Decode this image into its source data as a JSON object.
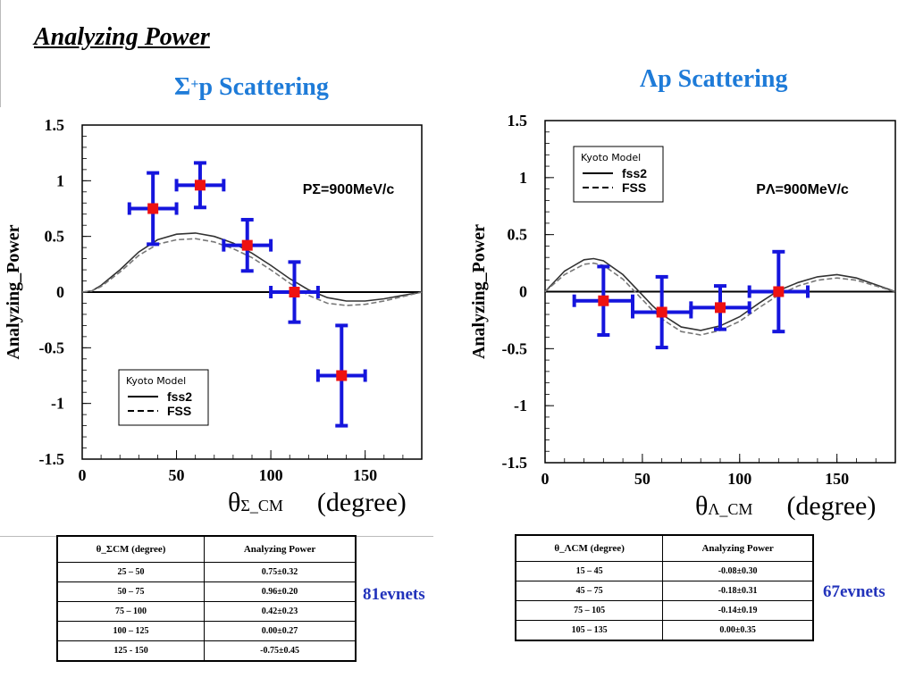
{
  "page": {
    "title": "Analyzing Power"
  },
  "left": {
    "subtitle_prefix": "Σ",
    "subtitle_sup": "+",
    "subtitle_suffix": "p Scattering",
    "events": "81evnets",
    "table": {
      "headers": [
        "θ_ΣCM (degree)",
        "Analyzing Power"
      ],
      "rows": [
        [
          "25 – 50",
          "0.75±0.32"
        ],
        [
          "50 – 75",
          "0.96±0.20"
        ],
        [
          "75 – 100",
          "0.42±0.23"
        ],
        [
          "100 – 125",
          "0.00±0.27"
        ],
        [
          "125 - 150",
          "-0.75±0.45"
        ]
      ]
    }
  },
  "right": {
    "subtitle": "Λp Scattering",
    "events": "67evnets",
    "table": {
      "headers": [
        "θ_ΛCM (degree)",
        "Analyzing Power"
      ],
      "rows": [
        [
          "15 – 45",
          "-0.08±0.30"
        ],
        [
          "45 – 75",
          "-0.18±0.31"
        ],
        [
          "75 – 105",
          "-0.14±0.19"
        ],
        [
          "105 – 135",
          "0.00±0.35"
        ]
      ]
    }
  },
  "chart_data": [
    {
      "type": "scatter",
      "ylabel": "Analyzing_Power",
      "xlabel_symbol": "θ",
      "xlabel_sub": "Σ_CM",
      "xlabel_unit": "(degree)",
      "annotation": "PΣ=900MeV/c",
      "legend_title": "Kyoto Model",
      "legend_placement": "bottom-left",
      "legend_entries": [
        "fss2",
        "FSS"
      ],
      "xlim": [
        0,
        180
      ],
      "ylim": [
        -1.5,
        1.5
      ],
      "xticks": [
        0,
        50,
        100,
        150
      ],
      "yticks": [
        1.5,
        1,
        0.5,
        0,
        -0.5,
        -1,
        -1.5
      ],
      "ytick_labels": [
        "1.5",
        "1",
        "0.5",
        "0",
        "-0.5",
        "-1",
        "-1.5"
      ],
      "series": [
        {
          "name": "data",
          "color": "#1515dd",
          "marker_color": "#ee1111",
          "points": [
            {
              "x": 37.5,
              "y": 0.75,
              "xerr": 12.5,
              "yerr": 0.32
            },
            {
              "x": 62.5,
              "y": 0.96,
              "xerr": 12.5,
              "yerr": 0.2
            },
            {
              "x": 87.5,
              "y": 0.42,
              "xerr": 12.5,
              "yerr": 0.23
            },
            {
              "x": 112.5,
              "y": 0.0,
              "xerr": 12.5,
              "yerr": 0.27
            },
            {
              "x": 137.5,
              "y": -0.75,
              "xerr": 12.5,
              "yerr": 0.45
            }
          ]
        }
      ],
      "curves": [
        {
          "name": "fss2",
          "style": "solid",
          "x": [
            0,
            5,
            10,
            20,
            30,
            40,
            50,
            60,
            70,
            80,
            90,
            100,
            110,
            120,
            130,
            140,
            150,
            160,
            170,
            180
          ],
          "y": [
            0,
            0.01,
            0.06,
            0.2,
            0.36,
            0.47,
            0.52,
            0.53,
            0.5,
            0.44,
            0.35,
            0.24,
            0.12,
            0.02,
            -0.05,
            -0.08,
            -0.08,
            -0.06,
            -0.03,
            0
          ]
        },
        {
          "name": "FSS",
          "style": "dashed",
          "x": [
            0,
            5,
            10,
            20,
            30,
            40,
            50,
            60,
            70,
            80,
            90,
            100,
            110,
            120,
            130,
            140,
            150,
            160,
            170,
            180
          ],
          "y": [
            0,
            0.01,
            0.05,
            0.18,
            0.33,
            0.43,
            0.47,
            0.48,
            0.45,
            0.39,
            0.31,
            0.2,
            0.08,
            -0.03,
            -0.1,
            -0.12,
            -0.11,
            -0.08,
            -0.04,
            0
          ]
        }
      ]
    },
    {
      "type": "scatter",
      "ylabel": "Analyzing_Power",
      "xlabel_symbol": "θ",
      "xlabel_sub": "Λ_CM",
      "xlabel_unit": "(degree)",
      "annotation": "PΛ=900MeV/c",
      "legend_title": "Kyoto Model",
      "legend_placement": "top-left",
      "legend_entries": [
        "fss2",
        "FSS"
      ],
      "xlim": [
        0,
        180
      ],
      "ylim": [
        -1.5,
        1.5
      ],
      "xticks": [
        0,
        50,
        100,
        150
      ],
      "yticks": [
        1.5,
        1,
        0.5,
        0,
        -0.5,
        -1,
        -1.5
      ],
      "ytick_labels": [
        "1.5",
        "1",
        "0.5",
        "0",
        "-0.5",
        "-1",
        "-1.5"
      ],
      "series": [
        {
          "name": "data",
          "color": "#1515dd",
          "marker_color": "#ee1111",
          "points": [
            {
              "x": 30,
              "y": -0.08,
              "xerr": 15,
              "yerr": 0.3
            },
            {
              "x": 60,
              "y": -0.18,
              "xerr": 15,
              "yerr": 0.31
            },
            {
              "x": 90,
              "y": -0.14,
              "xerr": 15,
              "yerr": 0.19
            },
            {
              "x": 120,
              "y": 0.0,
              "xerr": 15,
              "yerr": 0.35
            }
          ]
        }
      ],
      "curves": [
        {
          "name": "fss2",
          "style": "solid",
          "x": [
            0,
            10,
            20,
            25,
            30,
            40,
            50,
            55,
            60,
            70,
            80,
            90,
            100,
            110,
            120,
            130,
            140,
            150,
            160,
            170,
            180
          ],
          "y": [
            0,
            0.18,
            0.28,
            0.29,
            0.27,
            0.15,
            -0.03,
            -0.12,
            -0.2,
            -0.31,
            -0.34,
            -0.3,
            -0.22,
            -0.1,
            0.01,
            0.08,
            0.13,
            0.15,
            0.12,
            0.06,
            0
          ]
        },
        {
          "name": "FSS",
          "style": "dashed",
          "x": [
            0,
            10,
            20,
            25,
            30,
            40,
            50,
            55,
            60,
            70,
            80,
            90,
            100,
            110,
            120,
            130,
            140,
            150,
            160,
            170,
            180
          ],
          "y": [
            0,
            0.15,
            0.24,
            0.25,
            0.23,
            0.11,
            -0.07,
            -0.16,
            -0.24,
            -0.35,
            -0.38,
            -0.34,
            -0.26,
            -0.14,
            -0.03,
            0.05,
            0.1,
            0.12,
            0.1,
            0.05,
            0
          ]
        }
      ]
    }
  ]
}
